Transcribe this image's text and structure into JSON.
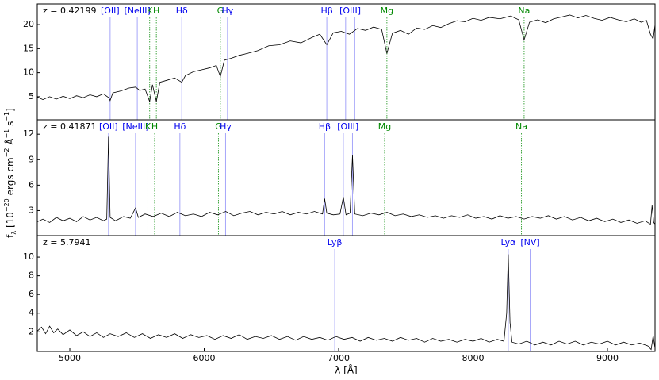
{
  "chart_data": [
    {
      "type": "line",
      "label": "z = 0.42199",
      "color": "#000000",
      "xlim": [
        4758,
        9354
      ],
      "ylim": [
        0.2,
        24.3
      ],
      "yticks": [
        5,
        10,
        15,
        20
      ],
      "x": [
        4760,
        4800,
        4850,
        4900,
        4950,
        5000,
        5050,
        5100,
        5150,
        5200,
        5250,
        5290,
        5300,
        5320,
        5380,
        5440,
        5490,
        5520,
        5560,
        5594,
        5615,
        5644,
        5670,
        5720,
        5780,
        5833,
        5860,
        5920,
        5980,
        6040,
        6090,
        6120,
        6150,
        6200,
        6260,
        6320,
        6400,
        6480,
        6560,
        6640,
        6720,
        6800,
        6860,
        6912,
        6960,
        7020,
        7080,
        7140,
        7200,
        7260,
        7320,
        7359,
        7400,
        7460,
        7520,
        7580,
        7640,
        7700,
        7760,
        7820,
        7880,
        7940,
        8000,
        8060,
        8120,
        8200,
        8280,
        8340,
        8380,
        8420,
        8480,
        8540,
        8600,
        8660,
        8720,
        8780,
        8840,
        8900,
        8960,
        9020,
        9080,
        9140,
        9200,
        9250,
        9290,
        9320,
        9340,
        9354
      ],
      "values": [
        4.9,
        4.4,
        5.0,
        4.5,
        5.1,
        4.6,
        5.2,
        4.8,
        5.4,
        5.0,
        5.6,
        4.8,
        4.2,
        5.8,
        6.2,
        6.8,
        7.0,
        6.3,
        6.6,
        4.0,
        7.5,
        4.0,
        8.0,
        8.4,
        8.9,
        8.0,
        9.4,
        10.2,
        10.6,
        11.0,
        11.5,
        9.2,
        12.6,
        13.0,
        13.6,
        14.0,
        14.6,
        15.6,
        15.8,
        16.6,
        16.2,
        17.3,
        18.0,
        15.8,
        18.3,
        18.6,
        18.0,
        19.2,
        18.8,
        19.5,
        19.0,
        14.0,
        18.2,
        18.8,
        18.0,
        19.3,
        19.0,
        19.8,
        19.4,
        20.2,
        20.8,
        20.6,
        21.3,
        20.9,
        21.5,
        21.2,
        21.8,
        21.0,
        16.8,
        20.5,
        21.0,
        20.4,
        21.2,
        21.6,
        22.0,
        21.4,
        21.9,
        21.3,
        20.9,
        21.5,
        21.0,
        20.6,
        21.2,
        20.5,
        20.9,
        18.0,
        17.0,
        20.0
      ],
      "lines": [
        {
          "label": "[OII]",
          "wavelengths": [
            5300
          ],
          "color": "#0000ee",
          "linestyle": "solid"
        },
        {
          "label": "[NeIII]",
          "wavelengths": [
            5502
          ],
          "color": "#0000ee",
          "linestyle": "solid"
        },
        {
          "label": "K",
          "wavelengths": [
            5594
          ],
          "color": "#008800",
          "linestyle": "dotted"
        },
        {
          "label": "H",
          "wavelengths": [
            5644
          ],
          "color": "#008800",
          "linestyle": "dotted"
        },
        {
          "label": "Hδ",
          "wavelengths": [
            5833
          ],
          "color": "#0000ee",
          "linestyle": "solid"
        },
        {
          "label": "G",
          "wavelengths": [
            6120
          ],
          "color": "#008800",
          "linestyle": "dotted"
        },
        {
          "label": "Hγ",
          "wavelengths": [
            6173
          ],
          "color": "#0000ee",
          "linestyle": "solid"
        },
        {
          "label": "Hβ",
          "wavelengths": [
            6912
          ],
          "color": "#0000ee",
          "linestyle": "solid"
        },
        {
          "label": "[OIII]",
          "wavelengths": [
            7052,
            7120
          ],
          "color": "#0000ee",
          "linestyle": "solid"
        },
        {
          "label": "Mg",
          "wavelengths": [
            7359
          ],
          "color": "#008800",
          "linestyle": "dotted"
        },
        {
          "label": "Na",
          "wavelengths": [
            8380
          ],
          "color": "#008800",
          "linestyle": "dotted"
        }
      ]
    },
    {
      "type": "line",
      "label": "z = 0.41871",
      "color": "#000000",
      "xlim": [
        4758,
        9354
      ],
      "ylim": [
        0.05,
        13.7
      ],
      "yticks": [
        3,
        6,
        9,
        12
      ],
      "ylabel": [
        {
          "text": "f"
        },
        {
          "text": "λ",
          "shift": "sub"
        },
        {
          "text": " [10"
        },
        {
          "text": "−20",
          "shift": "super"
        },
        {
          "text": " ergs cm"
        },
        {
          "text": "−2",
          "shift": "super"
        },
        {
          "text": " Å"
        },
        {
          "text": "−1",
          "shift": "super"
        },
        {
          "text": " s"
        },
        {
          "text": "−1",
          "shift": "super"
        },
        {
          "text": "]"
        }
      ],
      "x": [
        4760,
        4800,
        4850,
        4900,
        4950,
        5000,
        5050,
        5100,
        5150,
        5200,
        5250,
        5275,
        5288,
        5300,
        5340,
        5400,
        5450,
        5489,
        5510,
        5560,
        5620,
        5680,
        5740,
        5800,
        5860,
        5920,
        5980,
        6040,
        6100,
        6160,
        6220,
        6280,
        6340,
        6400,
        6460,
        6520,
        6580,
        6640,
        6700,
        6760,
        6820,
        6880,
        6896,
        6912,
        6960,
        7010,
        7035,
        7055,
        7085,
        7103,
        7120,
        7180,
        7240,
        7300,
        7360,
        7420,
        7480,
        7540,
        7600,
        7660,
        7720,
        7780,
        7840,
        7900,
        7960,
        8020,
        8080,
        8140,
        8200,
        8260,
        8320,
        8380,
        8440,
        8500,
        8560,
        8620,
        8680,
        8740,
        8800,
        8860,
        8920,
        8980,
        9040,
        9100,
        9160,
        9220,
        9280,
        9320,
        9332,
        9344,
        9354
      ],
      "values": [
        1.7,
        2.0,
        1.6,
        2.2,
        1.8,
        2.1,
        1.7,
        2.3,
        1.9,
        2.2,
        1.8,
        2.0,
        11.7,
        2.2,
        1.8,
        2.3,
        2.1,
        3.3,
        2.2,
        2.6,
        2.3,
        2.7,
        2.3,
        2.8,
        2.4,
        2.6,
        2.3,
        2.8,
        2.5,
        2.9,
        2.4,
        2.7,
        2.9,
        2.5,
        2.8,
        2.6,
        2.9,
        2.5,
        2.8,
        2.6,
        2.9,
        2.6,
        4.4,
        2.7,
        2.5,
        2.6,
        4.6,
        2.5,
        2.7,
        9.5,
        2.6,
        2.4,
        2.7,
        2.5,
        2.8,
        2.4,
        2.6,
        2.3,
        2.5,
        2.2,
        2.4,
        2.1,
        2.4,
        2.2,
        2.5,
        2.1,
        2.3,
        2.0,
        2.4,
        2.1,
        2.3,
        2.0,
        2.3,
        2.1,
        2.4,
        2.0,
        2.3,
        1.9,
        2.2,
        1.8,
        2.1,
        1.7,
        2.0,
        1.6,
        1.9,
        1.5,
        1.8,
        1.4,
        3.6,
        1.6,
        1.4
      ],
      "lines": [
        {
          "label": "[OII]",
          "wavelengths": [
            5288
          ],
          "color": "#0000ee",
          "linestyle": "solid"
        },
        {
          "label": "[NeIII]",
          "wavelengths": [
            5489
          ],
          "color": "#0000ee",
          "linestyle": "solid"
        },
        {
          "label": "K",
          "wavelengths": [
            5581
          ],
          "color": "#008800",
          "linestyle": "dotted"
        },
        {
          "label": "H",
          "wavelengths": [
            5631
          ],
          "color": "#008800",
          "linestyle": "dotted"
        },
        {
          "label": "Hδ",
          "wavelengths": [
            5819
          ],
          "color": "#0000ee",
          "linestyle": "solid"
        },
        {
          "label": "G",
          "wavelengths": [
            6106
          ],
          "color": "#008800",
          "linestyle": "dotted"
        },
        {
          "label": "Hγ",
          "wavelengths": [
            6159
          ],
          "color": "#0000ee",
          "linestyle": "solid"
        },
        {
          "label": "Hβ",
          "wavelengths": [
            6896
          ],
          "color": "#0000ee",
          "linestyle": "solid"
        },
        {
          "label": "[OIII]",
          "wavelengths": [
            7035,
            7103
          ],
          "color": "#0000ee",
          "linestyle": "solid"
        },
        {
          "label": "Mg",
          "wavelengths": [
            7342
          ],
          "color": "#008800",
          "linestyle": "dotted"
        },
        {
          "label": "Na",
          "wavelengths": [
            8360
          ],
          "color": "#008800",
          "linestyle": "dotted"
        }
      ]
    },
    {
      "type": "line",
      "label": "z = 5.7941",
      "color": "#000000",
      "xlim": [
        4758,
        9354
      ],
      "ylim": [
        -0.1,
        12.3
      ],
      "yticks": [
        2,
        4,
        6,
        8,
        10
      ],
      "xticks": [
        5000,
        6000,
        7000,
        8000,
        9000
      ],
      "xlabel": "λ [Å]",
      "x": [
        4760,
        4790,
        4820,
        4850,
        4880,
        4910,
        4950,
        5000,
        5050,
        5100,
        5150,
        5200,
        5250,
        5300,
        5360,
        5420,
        5480,
        5540,
        5600,
        5660,
        5720,
        5780,
        5840,
        5900,
        5960,
        6020,
        6080,
        6140,
        6200,
        6260,
        6320,
        6380,
        6440,
        6500,
        6560,
        6620,
        6680,
        6740,
        6800,
        6860,
        6920,
        6980,
        7040,
        7100,
        7160,
        7220,
        7280,
        7340,
        7400,
        7460,
        7520,
        7580,
        7640,
        7700,
        7760,
        7820,
        7880,
        7940,
        8000,
        8060,
        8120,
        8180,
        8230,
        8250,
        8262,
        8275,
        8290,
        8340,
        8400,
        8460,
        8520,
        8580,
        8640,
        8700,
        8760,
        8820,
        8880,
        8940,
        9000,
        9060,
        9120,
        9180,
        9240,
        9300,
        9325,
        9340,
        9354
      ],
      "values": [
        2.1,
        2.5,
        1.8,
        2.6,
        1.9,
        2.3,
        1.7,
        2.2,
        1.6,
        2.0,
        1.5,
        1.9,
        1.4,
        1.8,
        1.5,
        1.9,
        1.4,
        1.8,
        1.3,
        1.7,
        1.4,
        1.8,
        1.3,
        1.7,
        1.4,
        1.6,
        1.2,
        1.6,
        1.3,
        1.7,
        1.2,
        1.5,
        1.3,
        1.6,
        1.2,
        1.5,
        1.1,
        1.5,
        1.2,
        1.4,
        1.1,
        1.5,
        1.2,
        1.4,
        1.0,
        1.4,
        1.1,
        1.3,
        1.0,
        1.4,
        1.1,
        1.3,
        0.9,
        1.3,
        1.0,
        1.2,
        0.9,
        1.2,
        1.0,
        1.3,
        0.9,
        1.2,
        1.0,
        4.0,
        10.3,
        3.0,
        0.9,
        0.7,
        1.0,
        0.6,
        0.9,
        0.6,
        1.0,
        0.7,
        1.0,
        0.6,
        0.9,
        0.7,
        1.0,
        0.6,
        0.9,
        0.6,
        0.8,
        0.5,
        0.1,
        1.6,
        0.2
      ],
      "lines": [
        {
          "label": "Lyβ",
          "wavelengths": [
            6971
          ],
          "color": "#0000ee",
          "linestyle": "solid"
        },
        {
          "label": "Lyα",
          "wavelengths": [
            8262
          ],
          "color": "#0000ee",
          "linestyle": "solid"
        },
        {
          "label": "[NV]",
          "wavelengths": [
            8425
          ],
          "color": "#0000ee",
          "linestyle": "solid"
        }
      ]
    }
  ]
}
